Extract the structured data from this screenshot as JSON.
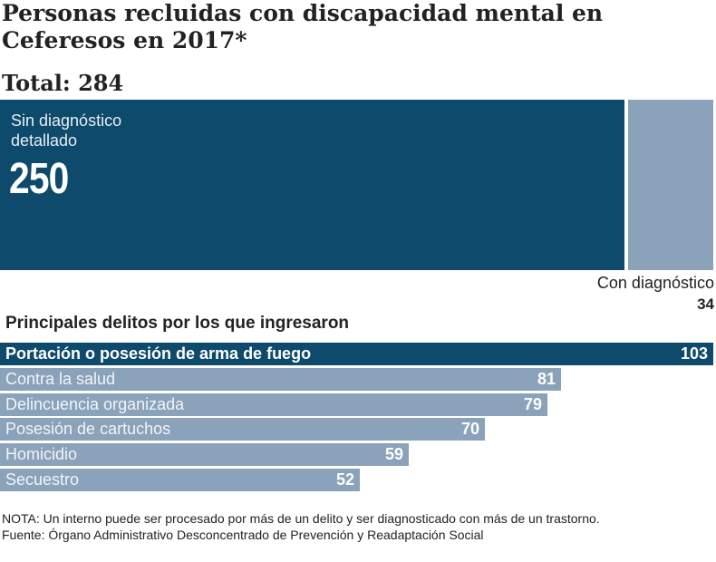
{
  "chart_data": [
    {
      "type": "bar",
      "title": "Personas recluidas con discapacidad mental en Ceferesos en 2017*",
      "total_label": "Total: 284",
      "segments": [
        {
          "name": "Sin diagnóstico detallado",
          "value": 250,
          "color": "#0e4a6b"
        },
        {
          "name": "Con diagnóstico",
          "value": 34,
          "color": "#8aa2ba"
        }
      ]
    },
    {
      "type": "bar",
      "title": "Principales delitos  por los que ingresaron",
      "categories": [
        "Portación o posesión de arma de fuego",
        "Contra la salud",
        "Delincuencia organizada",
        "Posesión de cartuchos",
        "Homicidio",
        "Secuestro"
      ],
      "values": [
        103,
        81,
        79,
        70,
        59,
        52
      ],
      "highlight_color": "#0e4a6b",
      "color": "#8aa2ba"
    }
  ],
  "notes": {
    "nota": "NOTA: Un interno puede ser procesado por más de un delito y ser diagnosticado con más de un trastorno.",
    "fuente": "Fuente: Órgano Administrativo Desconcentrado de Prevención y Readaptación Social"
  }
}
